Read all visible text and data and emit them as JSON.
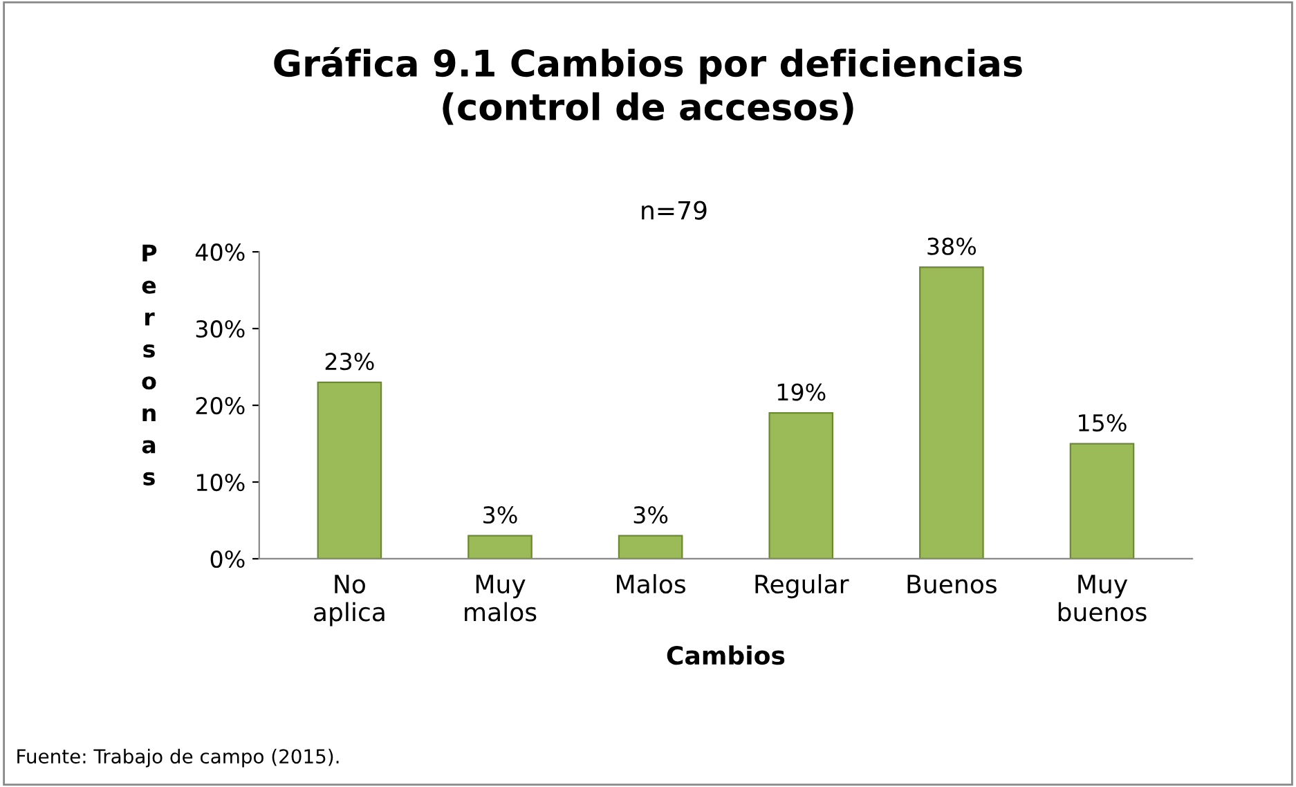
{
  "chart_data": {
    "type": "bar",
    "title": "Gráfica 9.1 Cambios por deficiencias\n(control de accesos)",
    "xlabel": "Cambios",
    "ylabel": "Personas",
    "categories": [
      "No aplica",
      "Muy malos",
      "Malos",
      "Regular",
      "Buenos",
      "Muy buenos"
    ],
    "values": [
      23,
      3,
      3,
      19,
      38,
      15
    ],
    "value_labels": [
      "23%",
      "3%",
      "3%",
      "19%",
      "38%",
      "15%"
    ],
    "color": "#9bbb59",
    "ylim": [
      0,
      40
    ],
    "yticks": [
      {
        "value": 0,
        "label": "0%"
      },
      {
        "value": 10,
        "label": "10%"
      },
      {
        "value": 20,
        "label": "20%"
      },
      {
        "value": 30,
        "label": "30%"
      },
      {
        "value": 40,
        "label": "40%"
      }
    ],
    "grid": false,
    "annotations": [
      "n=79",
      "Fuente: Trabajo de campo (2015)."
    ]
  }
}
